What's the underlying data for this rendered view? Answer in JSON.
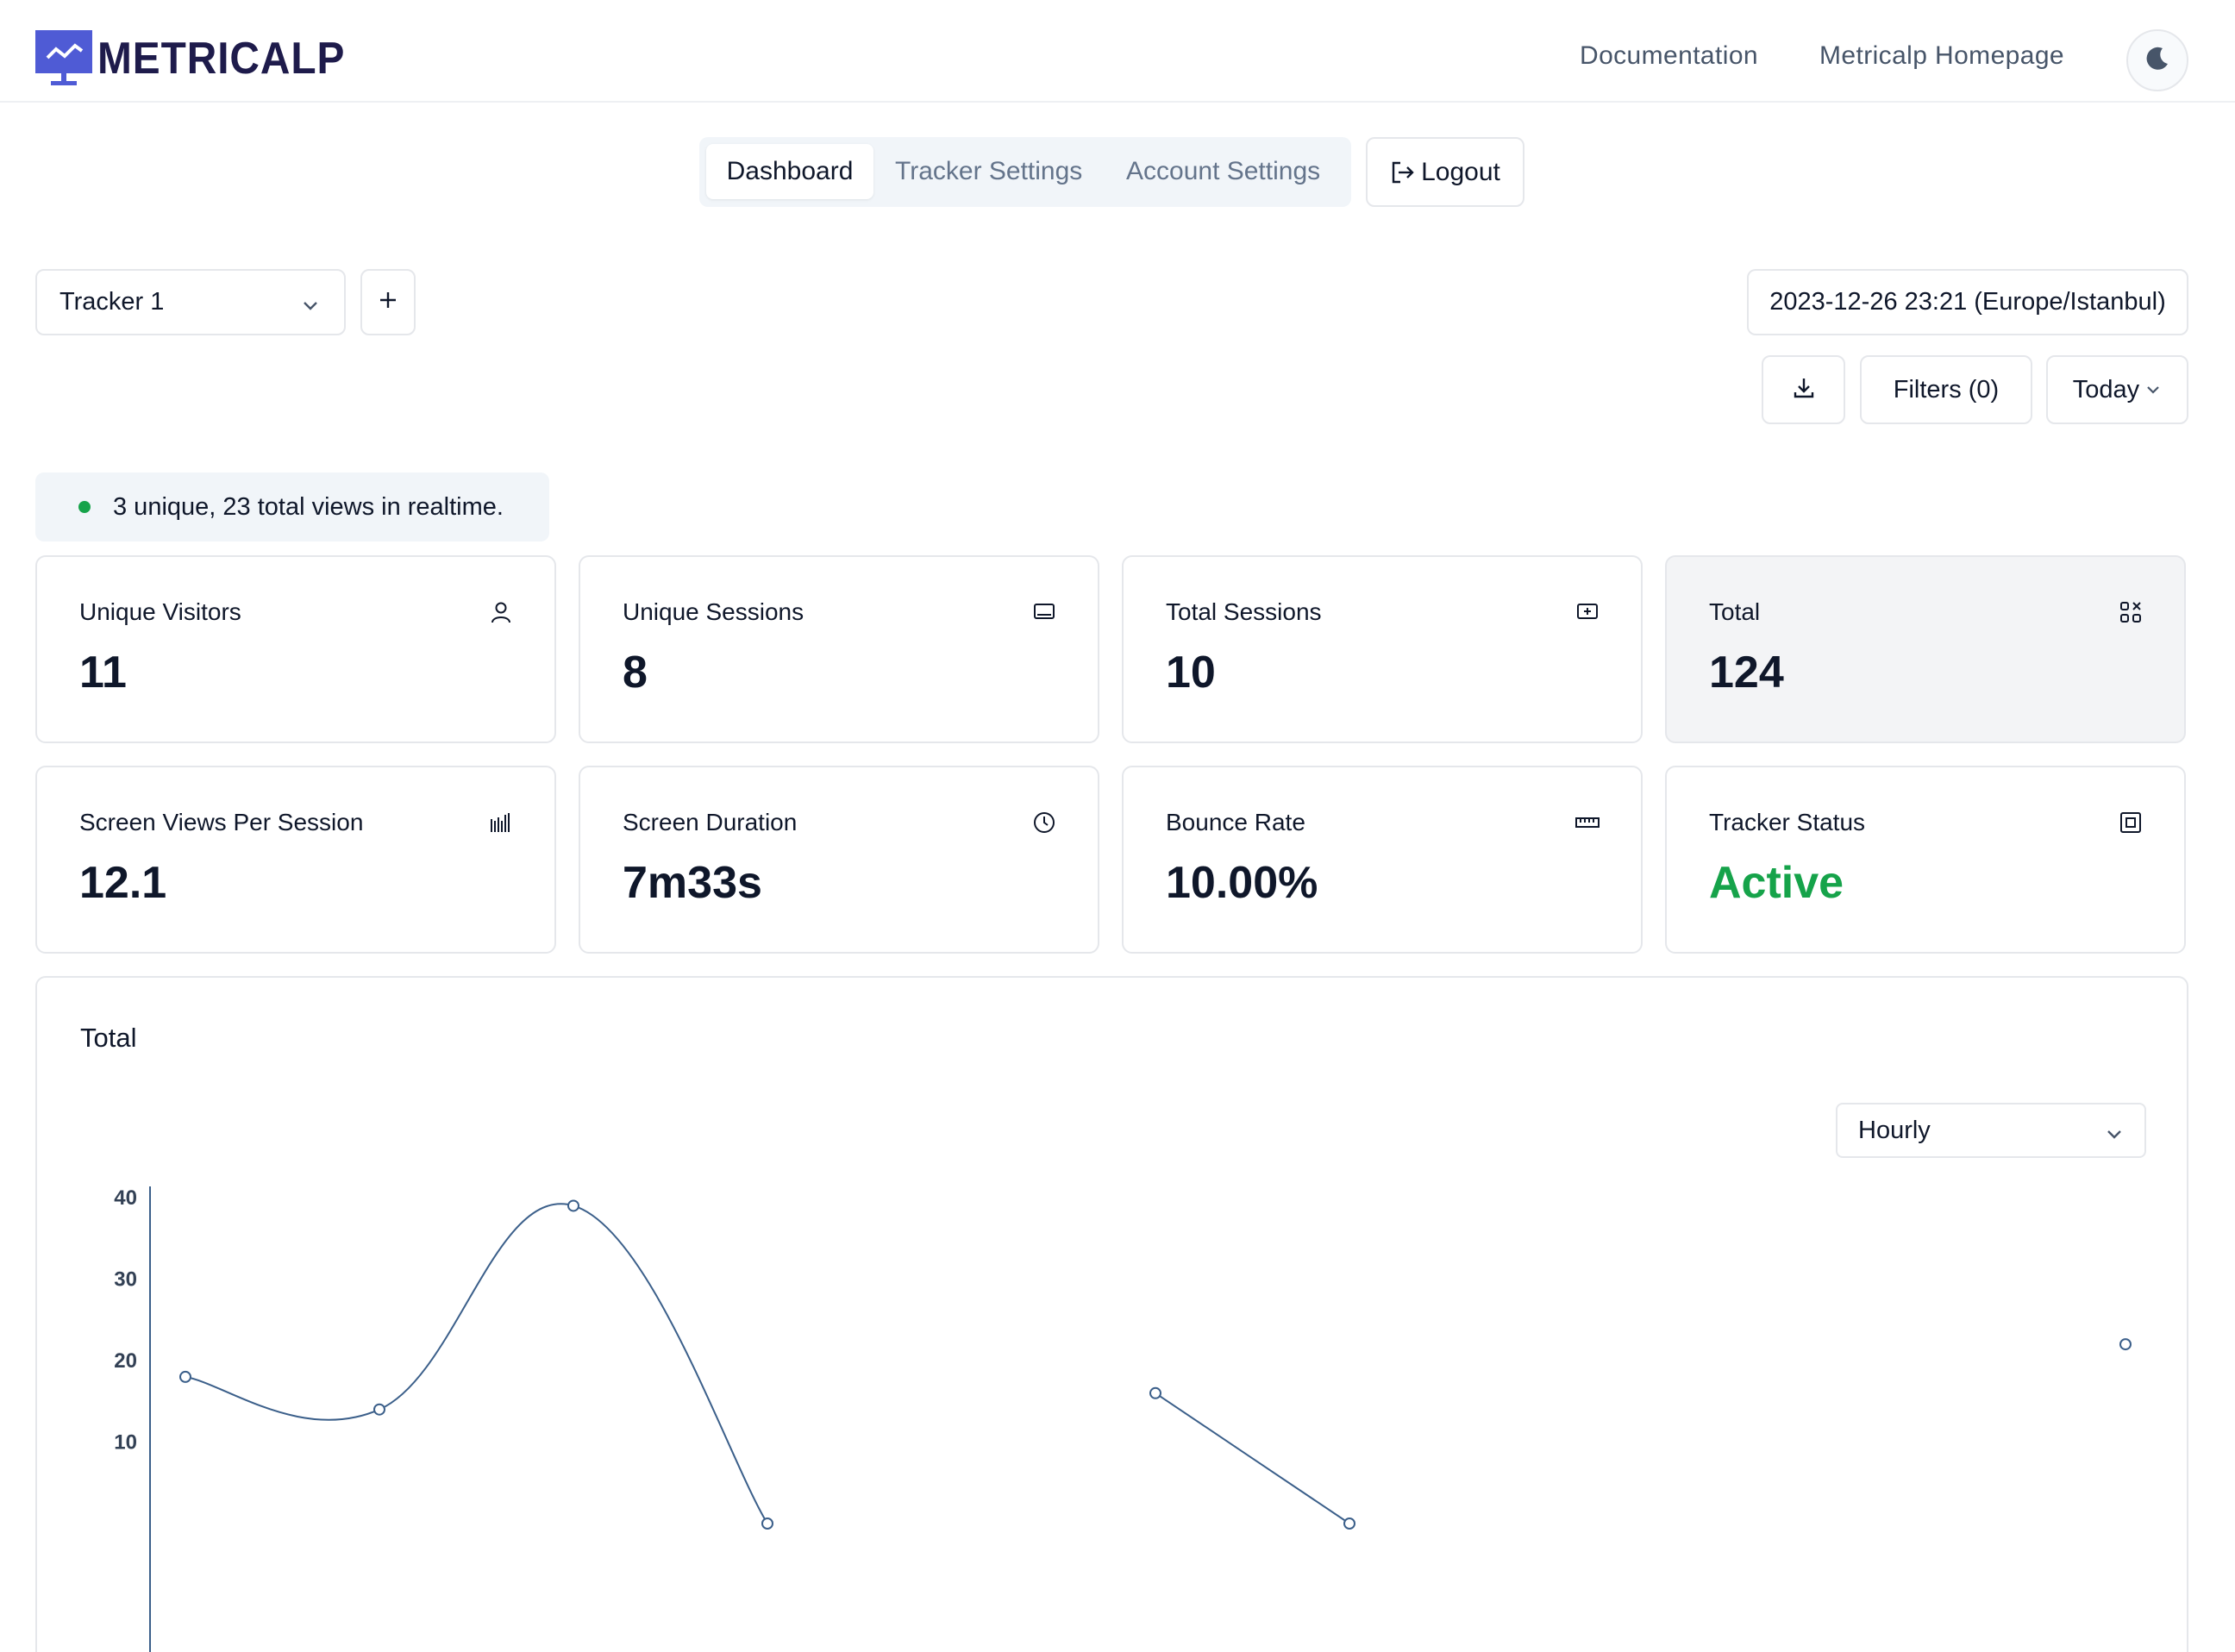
{
  "brand": {
    "name": "METRICALP",
    "logo": "monitor-chart-logo"
  },
  "header": {
    "links": [
      "Documentation",
      "Metricalp Homepage"
    ],
    "theme_icon": "moon-icon"
  },
  "tabs": {
    "items": [
      "Dashboard",
      "Tracker Settings",
      "Account Settings"
    ],
    "active": "Dashboard",
    "logout_label": "Logout"
  },
  "controls": {
    "tracker": "Tracker 1",
    "add_label": "+",
    "datetime": "2023-12-26 23:21 (Europe/Istanbul)",
    "filters_label": "Filters (0)",
    "range_label": "Today"
  },
  "realtime": {
    "text": "3 unique, 23 total views in realtime.",
    "status_color": "#16a34a"
  },
  "stats": [
    {
      "label": "Unique Visitors",
      "value": "11",
      "icon": "user-icon"
    },
    {
      "label": "Unique Sessions",
      "value": "8",
      "icon": "monitor-icon"
    },
    {
      "label": "Total Sessions",
      "value": "10",
      "icon": "add-screen-icon"
    },
    {
      "label": "Total",
      "value": "124",
      "icon": "apps-icon"
    },
    {
      "label": "Screen Views Per Session",
      "value": "12.1",
      "icon": "barcode-icon"
    },
    {
      "label": "Screen Duration",
      "value": "7m33s",
      "icon": "clock-icon"
    },
    {
      "label": "Bounce Rate",
      "value": "10.00%",
      "icon": "ruler-icon"
    },
    {
      "label": "Tracker Status",
      "value": "Active",
      "icon": "square-icon"
    }
  ],
  "chart_section": {
    "title": "Total",
    "interval": "Hourly"
  },
  "chart_data": {
    "type": "line",
    "title": "Total",
    "xlabel": "",
    "ylabel": "",
    "y_ticks": [
      "10",
      "20",
      "30",
      "40"
    ],
    "ylim": [
      0,
      40
    ],
    "series": [
      {
        "values": [
          18,
          14,
          39,
          0,
          null,
          16,
          0,
          null,
          null,
          null,
          22
        ]
      }
    ],
    "line_color": "#3b5f8a",
    "grid": false
  }
}
